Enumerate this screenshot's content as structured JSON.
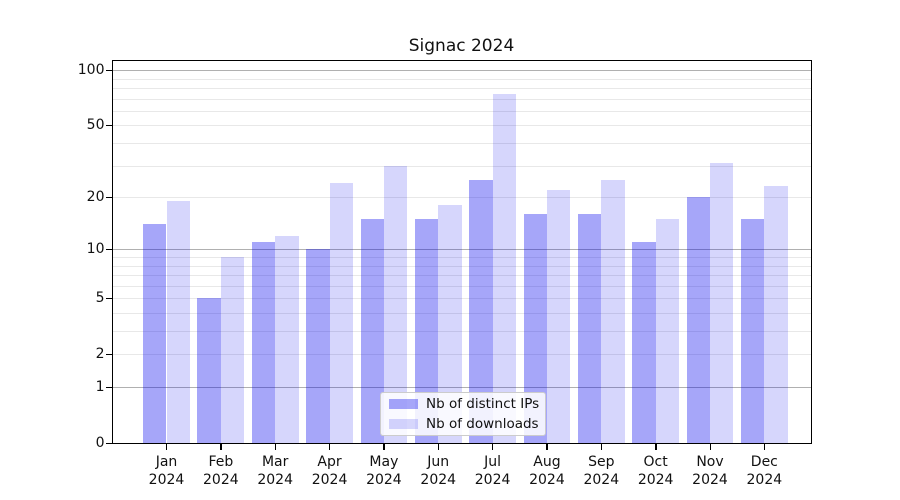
{
  "chart_data": {
    "type": "bar",
    "title": "Signac 2024",
    "categories": [
      "Jan 2024",
      "Feb 2024",
      "Mar 2024",
      "Apr 2024",
      "May 2024",
      "Jun 2024",
      "Jul 2024",
      "Aug 2024",
      "Sep 2024",
      "Oct 2024",
      "Nov 2024",
      "Dec 2024"
    ],
    "series": [
      {
        "name": "Nb of distinct IPs",
        "color": "rgba(0,0,238,0.35)",
        "values": [
          14,
          5,
          11,
          10,
          15,
          15,
          25,
          16,
          16,
          11,
          20,
          15
        ]
      },
      {
        "name": "Nb of downloads",
        "color": "rgba(0,0,238,0.16)",
        "values": [
          19,
          9,
          12,
          24,
          30,
          18,
          74,
          22,
          25,
          15,
          31,
          23
        ]
      }
    ],
    "xlabel": "",
    "ylabel": "",
    "yscale": "log1p",
    "ylim": [
      0,
      113
    ],
    "ytick_labels": [
      0,
      1,
      2,
      5,
      10,
      20,
      50,
      100
    ],
    "major_gridlines": [
      1,
      10,
      100
    ],
    "minor_gridlines": [
      2,
      3,
      4,
      5,
      6,
      7,
      8,
      9,
      20,
      30,
      40,
      50,
      60,
      70,
      80,
      90
    ],
    "grid": true,
    "legend_position": "lower center",
    "colors": {
      "bar_ips": "rgba(0,0,238,0.35)",
      "bar_downloads": "rgba(0,0,238,0.16)",
      "major_grid": "#b0b0b0",
      "minor_grid": "#e8e8e8",
      "spine": "#000000",
      "background": "#ffffff"
    }
  }
}
